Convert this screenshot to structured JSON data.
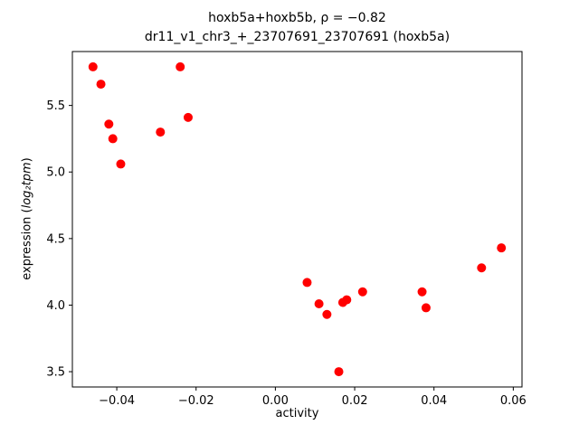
{
  "title": {
    "line1": "hoxb5a+hoxb5b, ρ = −0.82",
    "line2": "dr11_v1_chr3_+_23707691_23707691 (hoxb5a)"
  },
  "labels": {
    "xlabel": "activity",
    "ylabel_prefix": "expression (",
    "ylabel_math": "log₂tpm",
    "ylabel_suffix": ")"
  },
  "chart_data": {
    "type": "scatter",
    "title": "hoxb5a+hoxb5b, ρ = −0.82",
    "subtitle": "dr11_v1_chr3_+_23707691_23707691 (hoxb5a)",
    "xlabel": "activity",
    "ylabel": "expression (log2 tpm)",
    "xlim": [
      -0.0512,
      0.0622
    ],
    "ylim": [
      3.385,
      5.905
    ],
    "xticks": [
      -0.04,
      -0.02,
      0.0,
      0.02,
      0.04,
      0.06
    ],
    "xtick_labels": [
      "−0.04",
      "−0.02",
      "0.00",
      "0.02",
      "0.04",
      "0.06"
    ],
    "yticks": [
      3.5,
      4.0,
      4.5,
      5.0,
      5.5
    ],
    "ytick_labels": [
      "3.5",
      "4.0",
      "4.5",
      "5.0",
      "5.5"
    ],
    "grid": false,
    "legend": null,
    "marker_color": "#ff0000",
    "marker_radius": 5,
    "frame_color": "#000000",
    "points": [
      [
        -0.046,
        5.79
      ],
      [
        -0.044,
        5.66
      ],
      [
        -0.042,
        5.36
      ],
      [
        -0.041,
        5.25
      ],
      [
        -0.039,
        5.06
      ],
      [
        -0.029,
        5.3
      ],
      [
        -0.024,
        5.79
      ],
      [
        -0.022,
        5.41
      ],
      [
        0.008,
        4.17
      ],
      [
        0.011,
        4.01
      ],
      [
        0.013,
        3.93
      ],
      [
        0.016,
        3.5
      ],
      [
        0.017,
        4.02
      ],
      [
        0.018,
        4.04
      ],
      [
        0.022,
        4.1
      ],
      [
        0.037,
        4.1
      ],
      [
        0.038,
        3.98
      ],
      [
        0.052,
        4.28
      ],
      [
        0.057,
        4.43
      ]
    ]
  }
}
